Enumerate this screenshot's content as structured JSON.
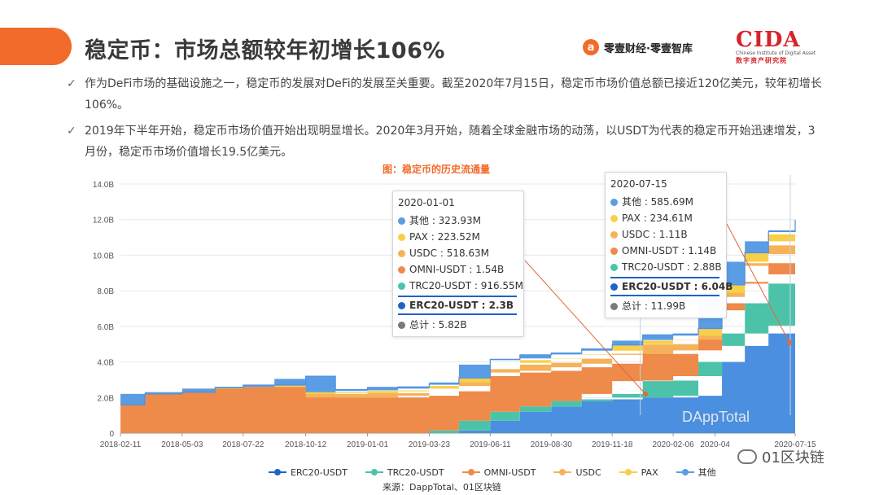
{
  "header": {
    "title": "稳定币：市场总额较年初增长106%",
    "brand_mark": "a",
    "brand_text": "零壹财经·零壹智库",
    "cida_letters": "CIDA",
    "cida_en": "Chinese Institute of Digital Assets",
    "cida_cn": "数字资产研究院"
  },
  "bullets": [
    {
      "icon": "✓",
      "text": "作为DeFi市场的基础设施之一，稳定币的发展对DeFi的发展至关重要。截至2020年7月15日，稳定币市场价值总额已接近120亿美元，较年初增长106%。"
    },
    {
      "icon": "✓",
      "text": "2019年下半年开始，稳定币市场价值开始出现明显增长。2020年3月开始，随着全球金融市场的动荡，以USDT为代表的稳定币开始迅速增发，3月份，稳定币市场价值增长19.5亿美元。"
    }
  ],
  "chart_title": "图：稳定币的历史流通量",
  "chart_watermark": "DAppTotal",
  "source": "来源：DappTotal、01区块链",
  "watermark_text": "01区块链",
  "colors": {
    "ERC20-USDT": "#4a8fe0",
    "TRC20-USDT": "#4cc3a9",
    "OMNI-USDT": "#ee8a4a",
    "USDC": "#f6b25a",
    "PAX": "#f8cf4a",
    "其他": "#5a9de4"
  },
  "tooltips": [
    {
      "date": "2020-01-01",
      "rows": [
        {
          "label": "其他 : 323.93M",
          "color": "#5a9de4"
        },
        {
          "label": "PAX : 223.52M",
          "color": "#f8cf4a"
        },
        {
          "label": "USDC : 518.63M",
          "color": "#f6b25a"
        },
        {
          "label": "OMNI-USDT : 1.54B",
          "color": "#ee8a4a"
        },
        {
          "label": "TRC20-USDT : 916.55M",
          "color": "#4cc3a9"
        },
        {
          "label": "ERC20-USDT : 2.3B",
          "color": "#1e63c8",
          "highlight": true
        },
        {
          "label": "总计 : 5.82B",
          "color": "#7a7a7a"
        }
      ]
    },
    {
      "date": "2020-07-15",
      "rows": [
        {
          "label": "其他 : 585.69M",
          "color": "#5a9de4"
        },
        {
          "label": "PAX : 234.61M",
          "color": "#f8cf4a"
        },
        {
          "label": "USDC : 1.11B",
          "color": "#f6b25a"
        },
        {
          "label": "OMNI-USDT : 1.14B",
          "color": "#ee8a4a"
        },
        {
          "label": "TRC20-USDT : 2.88B",
          "color": "#4cc3a9"
        },
        {
          "label": "ERC20-USDT : 6.04B",
          "color": "#1e63c8",
          "highlight": true
        },
        {
          "label": "总计 : 11.99B",
          "color": "#7a7a7a"
        }
      ]
    }
  ],
  "chart_data": {
    "type": "area",
    "stacked": true,
    "unit": "B",
    "x": [
      "2018-02-11",
      "2018-03-15",
      "2018-05-03",
      "2018-06-15",
      "2018-07-22",
      "2018-09-01",
      "2018-10-12",
      "2018-11-20",
      "2019-01-01",
      "2019-02-10",
      "2019-03-23",
      "2019-05-01",
      "2019-06-11",
      "2019-07-20",
      "2019-08-30",
      "2019-10-09",
      "2019-11-18",
      "2019-12-28",
      "2020-02-06",
      "2020-03-10",
      "2020-04-10",
      "2020-05-10",
      "2020-06-10",
      "2020-07-15"
    ],
    "x_ticks": [
      "2018-02-11",
      "2018-05-03",
      "2018-07-22",
      "2018-10-12",
      "2019-01-01",
      "2019-03-23",
      "2019-06-11",
      "2019-08-30",
      "2019-11-18",
      "2020-02-06",
      "2020-04",
      "2020-07-15"
    ],
    "y_ticks": [
      "0",
      "2.0B",
      "4.0B",
      "6.0B",
      "8.0B",
      "10.0B",
      "12.0B",
      "14.0B"
    ],
    "ylim": [
      0,
      14
    ],
    "series": [
      {
        "name": "ERC20-USDT",
        "values": [
          0,
          0,
          0,
          0,
          0,
          0,
          0,
          0,
          0,
          0,
          0,
          0.15,
          0.7,
          1.2,
          1.5,
          1.8,
          1.9,
          2.0,
          2.0,
          2.1,
          4.0,
          4.9,
          5.6,
          6.04
        ]
      },
      {
        "name": "TRC20-USDT",
        "values": [
          0,
          0,
          0,
          0,
          0,
          0,
          0,
          0,
          0,
          0,
          0,
          0,
          0,
          0,
          0,
          0,
          0.3,
          0.92,
          0.95,
          1.1,
          1.6,
          2.4,
          2.8,
          2.88
        ]
      },
      {
        "name": "OMNI-USDT",
        "values": [
          1.6,
          2.2,
          2.3,
          2.5,
          2.6,
          2.6,
          2.9,
          2.0,
          2.0,
          2.0,
          2.1,
          2.2,
          2.5,
          2.2,
          2.0,
          1.9,
          1.7,
          1.54,
          1.5,
          1.45,
          1.3,
          1.2,
          1.15,
          1.14
        ]
      },
      {
        "name": "USDC",
        "values": [
          0,
          0,
          0,
          0,
          0,
          0,
          0.1,
          0.2,
          0.25,
          0.25,
          0.25,
          0.3,
          0.4,
          0.45,
          0.45,
          0.48,
          0.5,
          0.52,
          0.55,
          0.6,
          0.75,
          0.9,
          1.0,
          1.11
        ]
      },
      {
        "name": "PAX",
        "values": [
          0,
          0,
          0,
          0,
          0,
          0,
          0.05,
          0.1,
          0.12,
          0.15,
          0.15,
          0.2,
          0.25,
          0.25,
          0.25,
          0.24,
          0.23,
          0.22,
          0.23,
          0.23,
          0.23,
          0.23,
          0.23,
          0.23
        ]
      },
      {
        "name": "其他",
        "values": [
          0,
          0,
          0,
          0.05,
          0.1,
          0.1,
          0.15,
          0.15,
          0.2,
          0.2,
          0.25,
          0.25,
          0.3,
          0.3,
          0.3,
          0.31,
          0.32,
          0.32,
          0.34,
          0.4,
          0.45,
          0.5,
          0.55,
          0.59
        ]
      }
    ],
    "title": "图：稳定币的历史流通量",
    "legend_position": "bottom",
    "grid": true
  }
}
